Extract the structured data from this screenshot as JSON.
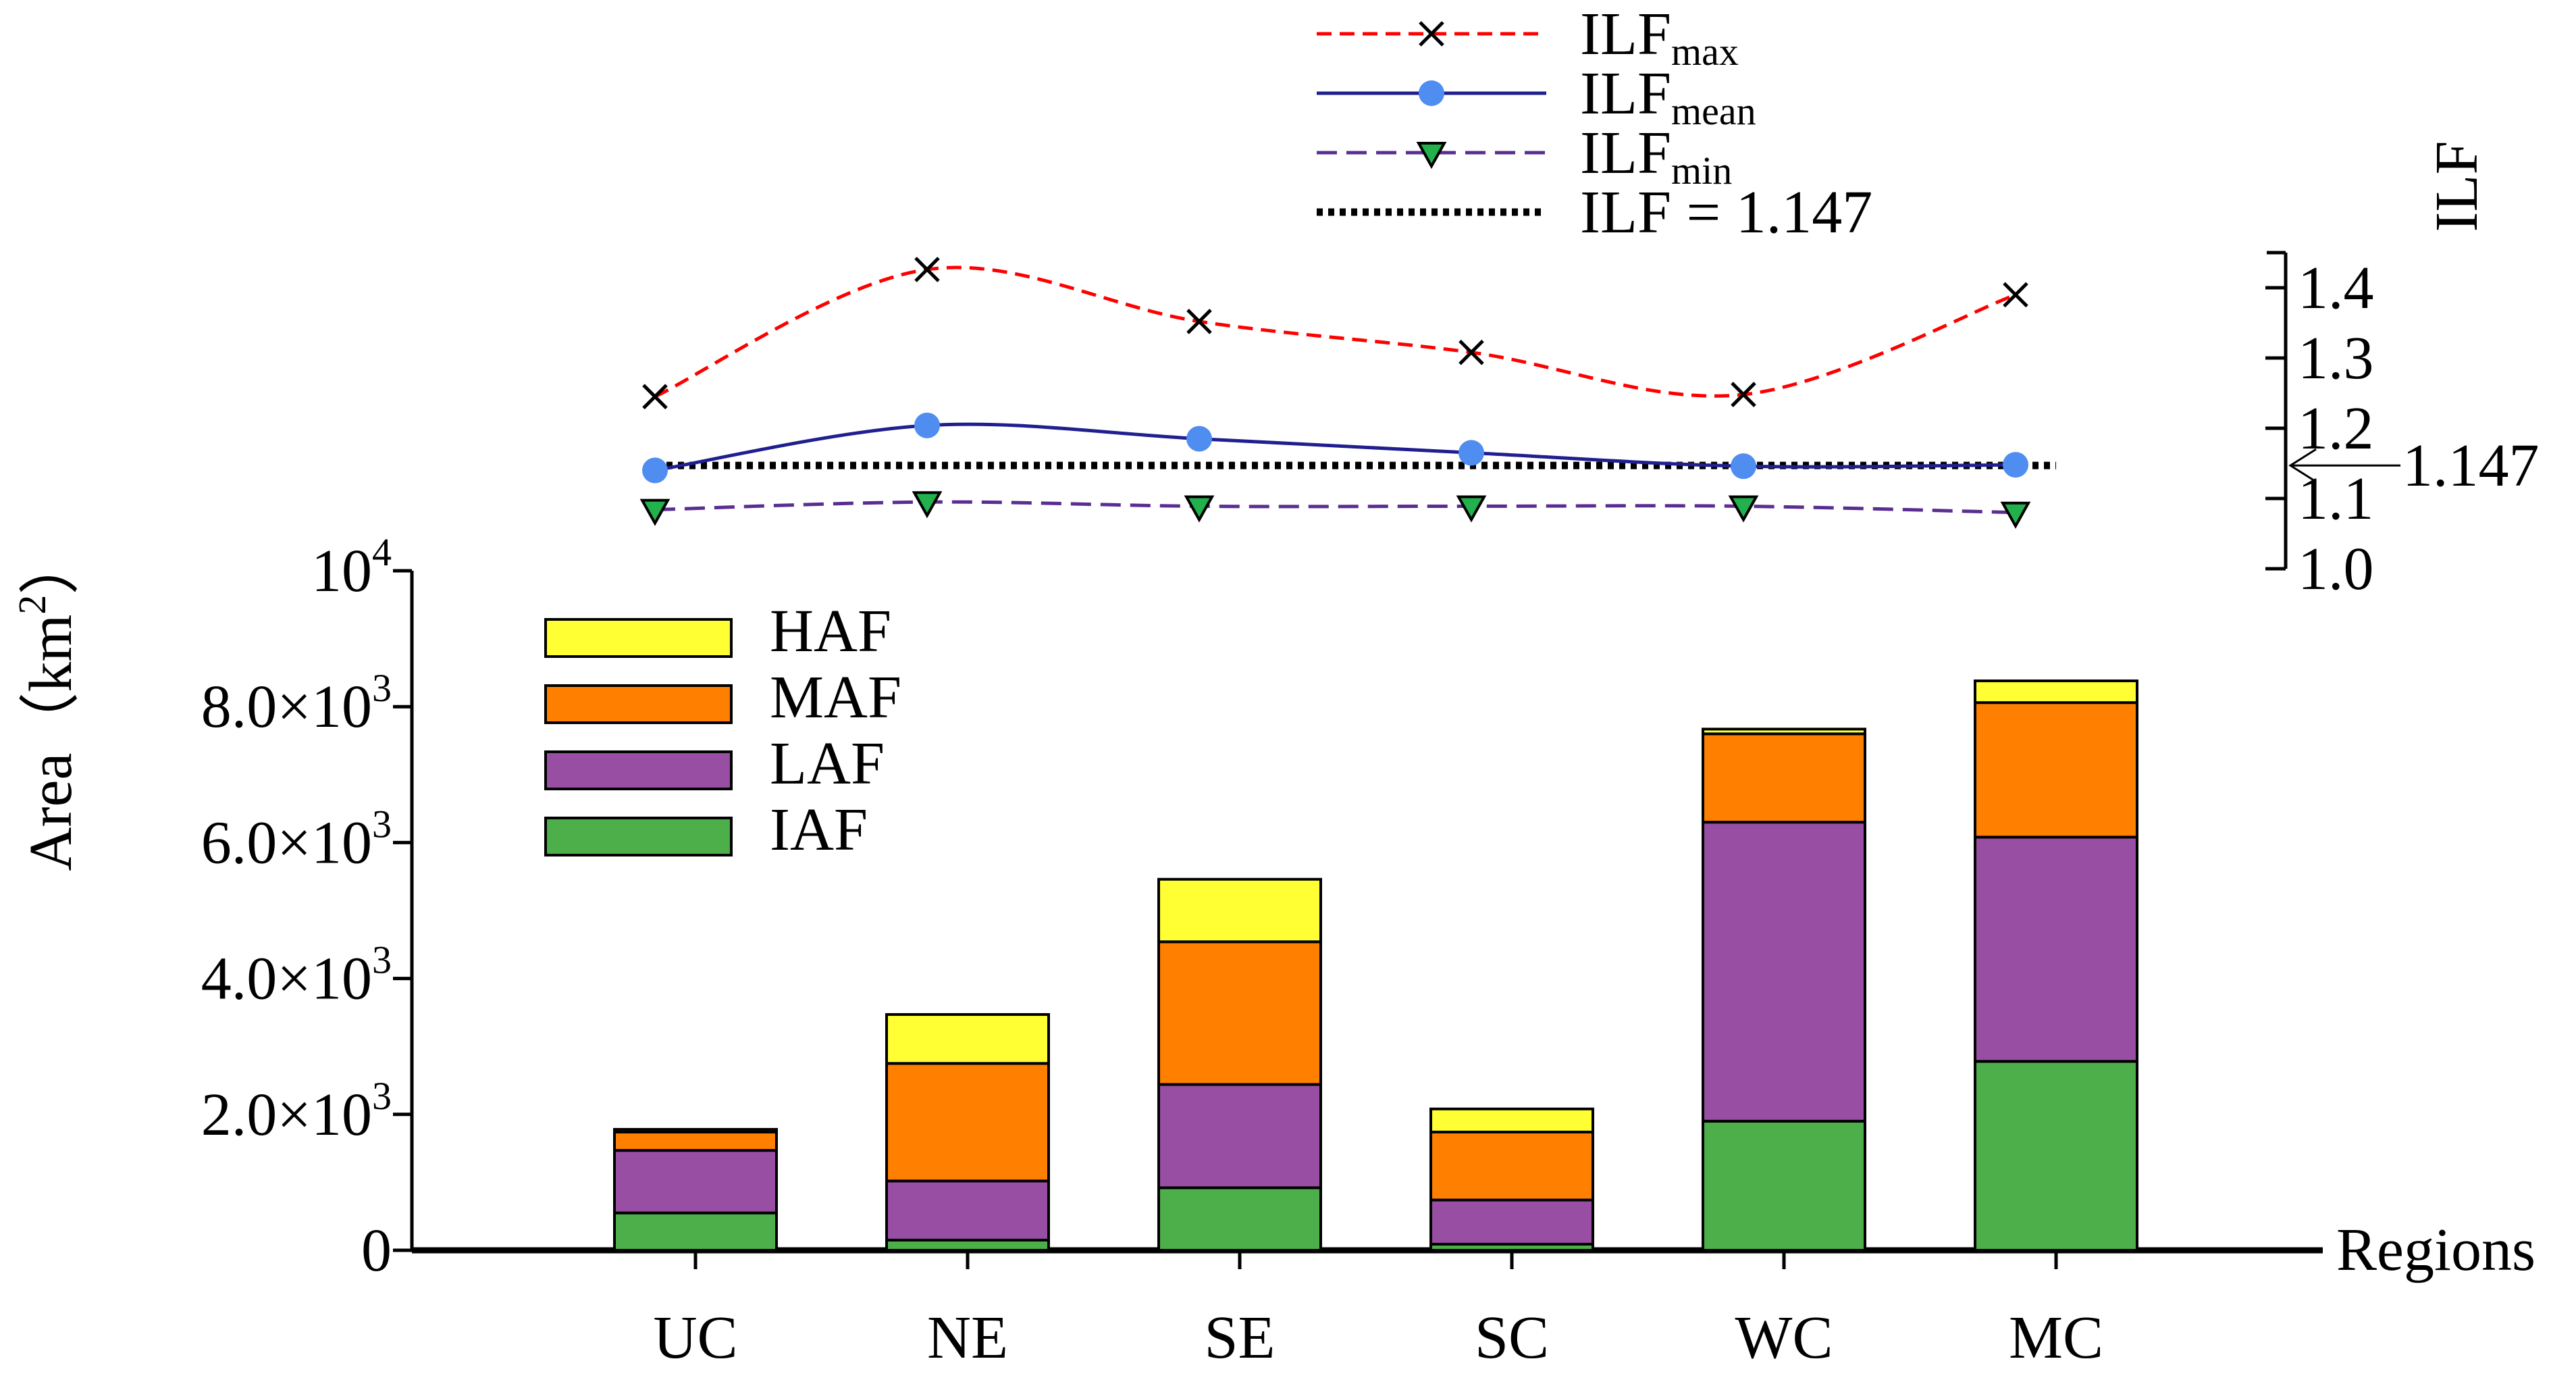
{
  "chart_data": [
    {
      "type": "bar",
      "stacked": true,
      "categories": [
        "UC",
        "NE",
        "SE",
        "SC",
        "WC",
        "MC"
      ],
      "xlabel": "Regions",
      "ylabel": "Area（km²）",
      "ylabel_parts": {
        "main": "Area（km",
        "sup": "2",
        "end": "）"
      },
      "ylim": [
        0,
        10000
      ],
      "y_ticks": [
        {
          "value": 0,
          "label": "0",
          "sup": ""
        },
        {
          "value": 2000,
          "label": "2.0×10",
          "sup": "3"
        },
        {
          "value": 4000,
          "label": "4.0×10",
          "sup": "3"
        },
        {
          "value": 6000,
          "label": "6.0×10",
          "sup": "3"
        },
        {
          "value": 8000,
          "label": "8.0×10",
          "sup": "3"
        },
        {
          "value": 10000,
          "label": "10",
          "sup": "4"
        }
      ],
      "legend_position": "upper-left",
      "series": [
        {
          "name": "IAF",
          "color": "#4daf4a",
          "values": [
            550,
            150,
            920,
            90,
            1900,
            2780
          ]
        },
        {
          "name": "LAF",
          "color": "#984ea3",
          "values": [
            920,
            870,
            1520,
            650,
            4400,
            3300
          ]
        },
        {
          "name": "MAF",
          "color": "#ff7f00",
          "values": [
            270,
            1730,
            2100,
            1000,
            1300,
            1980
          ]
        },
        {
          "name": "HAF",
          "color": "#ffff33",
          "values": [
            40,
            720,
            920,
            340,
            70,
            320
          ]
        }
      ]
    },
    {
      "type": "line",
      "categories": [
        "UC",
        "NE",
        "SE",
        "SC",
        "WC",
        "MC"
      ],
      "ylabel": "ILF",
      "ylim": [
        1.0,
        1.45
      ],
      "y_ticks": [
        "1.0",
        "1.1",
        "1.2",
        "1.3",
        "1.4"
      ],
      "reference": {
        "value": 1.147,
        "label": "1.147",
        "legend": "ILF = 1.147",
        "color": "#000000"
      },
      "legend_position": "top-center",
      "series": [
        {
          "name": "ILF",
          "sub": "max",
          "color": "#ff0000",
          "marker": "x",
          "line": "dashed",
          "values": [
            1.245,
            1.426,
            1.352,
            1.308,
            1.248,
            1.39
          ]
        },
        {
          "name": "ILF",
          "sub": "mean",
          "color": "#1f1f8f",
          "marker_color": "#4f8df0",
          "marker": "circle",
          "line": "solid",
          "values": [
            1.14,
            1.204,
            1.185,
            1.165,
            1.146,
            1.148
          ]
        },
        {
          "name": "ILF",
          "sub": "min",
          "color": "#5a2d91",
          "marker_color": "#22b14c",
          "marker": "triangle",
          "line": "dashed",
          "values": [
            1.084,
            1.095,
            1.089,
            1.089,
            1.089,
            1.08
          ]
        }
      ]
    }
  ]
}
